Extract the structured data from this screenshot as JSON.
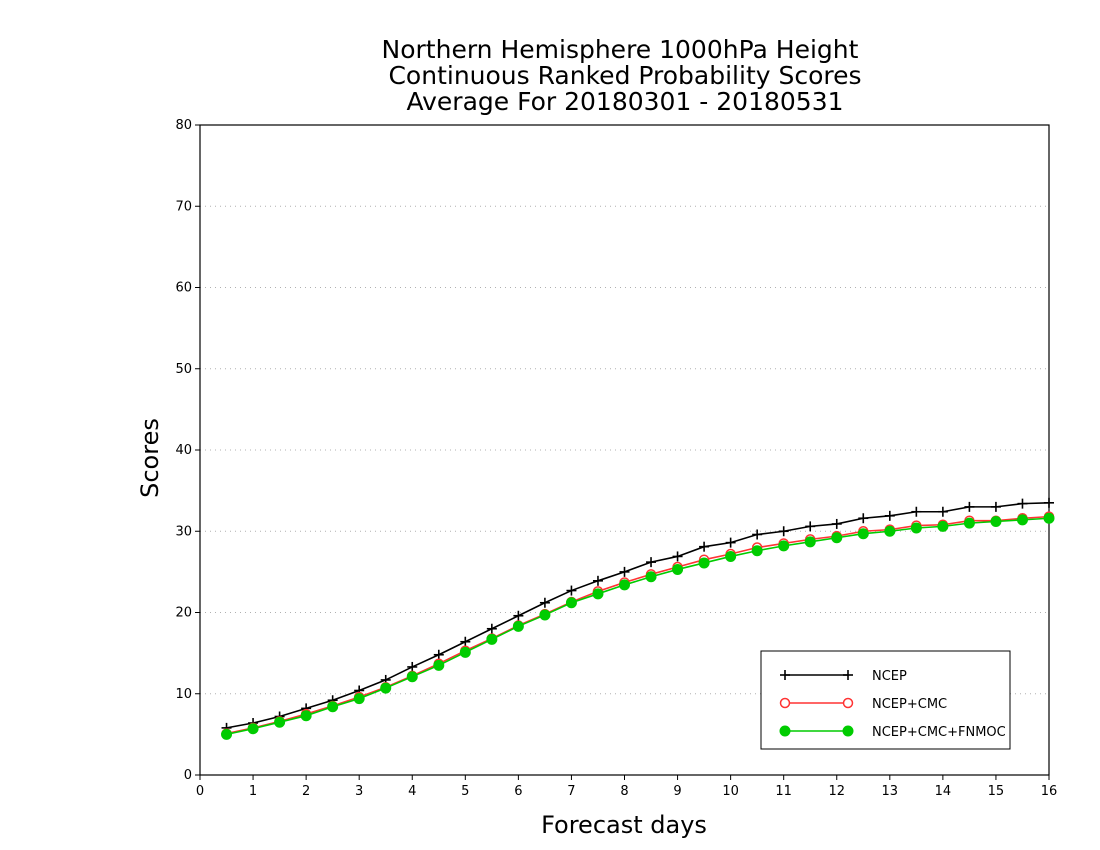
{
  "chart_data": {
    "type": "line",
    "title_lines": [
      "Northern Hemisphere 1000hPa Height",
      "Continuous Ranked Probability Scores",
      "Average For 20180301 - 20180531"
    ],
    "xlabel": "Forecast days",
    "ylabel": "Scores",
    "xlim": [
      0,
      16
    ],
    "ylim": [
      0,
      80
    ],
    "x_ticks": [
      "0",
      "1",
      "2",
      "3",
      "4",
      "5",
      "6",
      "7",
      "8",
      "9",
      "10",
      "11",
      "12",
      "13",
      "14",
      "15",
      "16"
    ],
    "y_ticks": [
      "0",
      "10",
      "20",
      "30",
      "40",
      "50",
      "60",
      "70",
      "80"
    ],
    "grid": "horizontal-dotted",
    "legend_position": "bottom-right",
    "x": [
      0.5,
      1,
      1.5,
      2,
      2.5,
      3,
      3.5,
      4,
      4.5,
      5,
      5.5,
      6,
      6.5,
      7,
      7.5,
      8,
      8.5,
      9,
      9.5,
      10,
      10.5,
      11,
      11.5,
      12,
      12.5,
      13,
      13.5,
      14,
      14.5,
      15,
      15.5,
      16
    ],
    "series": [
      {
        "name": "NCEP",
        "color": "#000000",
        "marker": "plus",
        "values": [
          5.8,
          6.4,
          7.2,
          8.2,
          9.2,
          10.4,
          11.7,
          13.3,
          14.8,
          16.4,
          18.0,
          19.6,
          21.2,
          22.7,
          23.9,
          25.0,
          26.2,
          26.9,
          28.1,
          28.6,
          29.6,
          30.0,
          30.6,
          30.9,
          31.6,
          31.9,
          32.4,
          32.4,
          33.0,
          33.0,
          33.4,
          33.5
        ]
      },
      {
        "name": "NCEP+CMC",
        "color": "#ff3333",
        "marker": "open-circle",
        "values": [
          5.1,
          5.8,
          6.6,
          7.5,
          8.5,
          9.6,
          10.8,
          12.2,
          13.7,
          15.3,
          16.8,
          18.4,
          19.8,
          21.3,
          22.6,
          23.7,
          24.7,
          25.6,
          26.5,
          27.2,
          28.0,
          28.5,
          29.0,
          29.4,
          30.0,
          30.2,
          30.7,
          30.8,
          31.3,
          31.3,
          31.6,
          31.8
        ]
      },
      {
        "name": "NCEP+CMC+FNMOC",
        "color": "#00cc00",
        "marker": "filled-circle",
        "values": [
          5.0,
          5.7,
          6.5,
          7.3,
          8.4,
          9.4,
          10.7,
          12.1,
          13.5,
          15.1,
          16.7,
          18.3,
          19.7,
          21.2,
          22.3,
          23.4,
          24.4,
          25.3,
          26.1,
          26.9,
          27.6,
          28.2,
          28.7,
          29.2,
          29.7,
          30.0,
          30.4,
          30.6,
          31.0,
          31.2,
          31.4,
          31.6
        ]
      }
    ]
  }
}
